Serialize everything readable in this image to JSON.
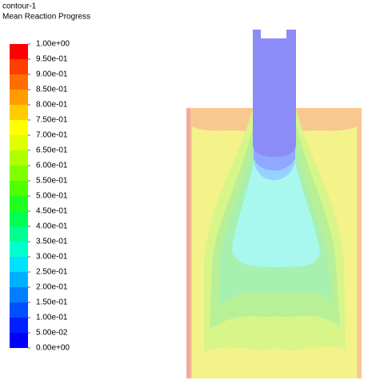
{
  "chart_data": {
    "type": "contour",
    "title": "contour-1",
    "subtitle": "Mean Reaction Progress",
    "clim": [
      0,
      1
    ],
    "cticks": [
      {
        "value": 0,
        "label": "0.00e+00"
      },
      {
        "value": 0.05,
        "label": "5.00e-02"
      },
      {
        "value": 0.1,
        "label": "1.00e-01"
      },
      {
        "value": 0.15,
        "label": "1.50e-01"
      },
      {
        "value": 0.2,
        "label": "2.00e-01"
      },
      {
        "value": 0.25,
        "label": "2.50e-01"
      },
      {
        "value": 0.3,
        "label": "3.00e-01"
      },
      {
        "value": 0.35,
        "label": "3.50e-01"
      },
      {
        "value": 0.4,
        "label": "4.00e-01"
      },
      {
        "value": 0.45,
        "label": "4.50e-01"
      },
      {
        "value": 0.5,
        "label": "5.00e-01"
      },
      {
        "value": 0.55,
        "label": "5.50e-01"
      },
      {
        "value": 0.6,
        "label": "6.00e-01"
      },
      {
        "value": 0.65,
        "label": "6.50e-01"
      },
      {
        "value": 0.7,
        "label": "7.00e-01"
      },
      {
        "value": 0.75,
        "label": "7.50e-01"
      },
      {
        "value": 0.8,
        "label": "8.00e-01"
      },
      {
        "value": 0.85,
        "label": "8.50e-01"
      },
      {
        "value": 0.9,
        "label": "9.00e-01"
      },
      {
        "value": 0.95,
        "label": "9.50e-01"
      },
      {
        "value": 1,
        "label": "1.00e+00"
      }
    ],
    "colors": [
      "#0000ff",
      "#0020ff",
      "#0050ff",
      "#0080ff",
      "#00b0ff",
      "#00e0ff",
      "#00ffd0",
      "#00ff90",
      "#00ff50",
      "#20ff20",
      "#50ff00",
      "#80ff00",
      "#b0ff00",
      "#e0ff00",
      "#ffff00",
      "#ffcc00",
      "#ff9d00",
      "#ff6e00",
      "#ff3f00",
      "#ff0000"
    ]
  }
}
